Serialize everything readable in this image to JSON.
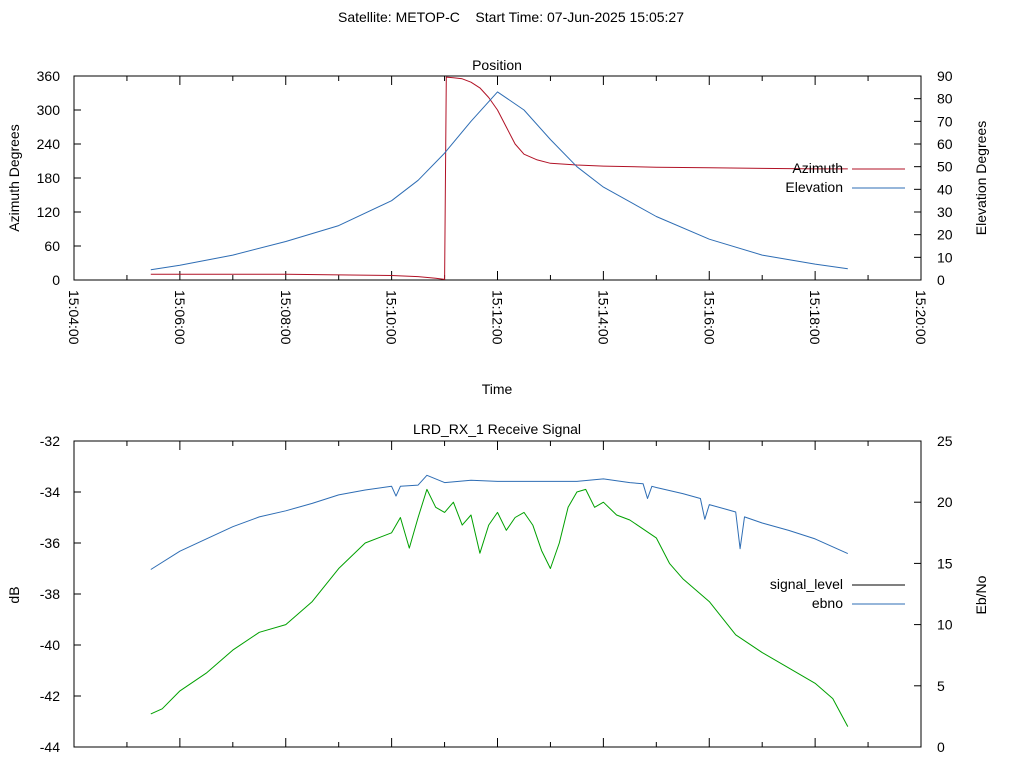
{
  "header": {
    "title": "Satellite: METOP-C    Start Time: 07-Jun-2025 15:05:27"
  },
  "colors": {
    "azimuth": "#b11226",
    "elevation": "#2e6db4",
    "signal_level": "#00a000",
    "ebno": "#2e6db4",
    "signal_level_legend": "#000000",
    "axis": "#000000"
  },
  "chart_data": [
    {
      "type": "line",
      "title": "Position",
      "xlabel": "Time",
      "ylabel": "Azimuth Degrees",
      "y2label": "Elevation Degrees",
      "xlim": [
        "15:04:00",
        "15:20:00"
      ],
      "ylim": [
        0,
        360
      ],
      "y2lim": [
        0,
        90
      ],
      "x_ticks": [
        "15:04:00",
        "15:06:00",
        "15:08:00",
        "15:10:00",
        "15:12:00",
        "15:14:00",
        "15:16:00",
        "15:18:00",
        "15:20:00"
      ],
      "y_ticks": [
        0,
        60,
        120,
        180,
        240,
        300,
        360
      ],
      "y2_ticks": [
        0,
        10,
        20,
        30,
        40,
        50,
        60,
        70,
        80,
        90
      ],
      "legend_position": "right",
      "series": [
        {
          "name": "Azimuth",
          "axis": "y",
          "x": [
            "15:05:27",
            "15:06:00",
            "15:07:00",
            "15:08:00",
            "15:09:00",
            "15:10:00",
            "15:10:30",
            "15:10:50",
            "15:11:00",
            "15:11:02",
            "15:11:10",
            "15:11:20",
            "15:11:30",
            "15:11:40",
            "15:11:50",
            "15:12:00",
            "15:12:10",
            "15:12:20",
            "15:12:30",
            "15:12:45",
            "15:13:00",
            "15:13:30",
            "15:14:00",
            "15:15:00",
            "15:16:00",
            "15:17:00",
            "15:18:00",
            "15:18:37"
          ],
          "y": [
            10,
            10,
            10,
            10,
            9,
            8,
            6,
            3,
            1,
            358,
            357,
            355,
            349,
            339,
            322,
            300,
            270,
            240,
            222,
            212,
            206,
            203,
            201,
            199,
            198,
            197,
            196,
            196
          ]
        },
        {
          "name": "Elevation",
          "axis": "y2",
          "x": [
            "15:05:27",
            "15:06:00",
            "15:07:00",
            "15:08:00",
            "15:09:00",
            "15:10:00",
            "15:10:30",
            "15:11:00",
            "15:11:30",
            "15:12:00",
            "15:12:30",
            "15:13:00",
            "15:13:30",
            "15:14:00",
            "15:15:00",
            "15:16:00",
            "15:17:00",
            "15:18:00",
            "15:18:37"
          ],
          "y": [
            4.5,
            6.5,
            11,
            17,
            24,
            35,
            44,
            56,
            70,
            83,
            75,
            62,
            50,
            41,
            28,
            18,
            11,
            7,
            5
          ]
        }
      ]
    },
    {
      "type": "line",
      "title": "LRD_RX_1 Receive Signal",
      "xlabel": "",
      "ylabel": "dB",
      "y2label": "Eb/No",
      "xlim": [
        "15:04:00",
        "15:20:00"
      ],
      "ylim": [
        -44,
        -32
      ],
      "y2lim": [
        0,
        25
      ],
      "y_ticks": [
        -44,
        -42,
        -40,
        -38,
        -36,
        -34,
        -32
      ],
      "y2_ticks": [
        0,
        5,
        10,
        15,
        20,
        25
      ],
      "legend_position": "right",
      "series": [
        {
          "name": "signal_level",
          "axis": "y",
          "x": [
            "15:05:27",
            "15:05:40",
            "15:06:00",
            "15:06:30",
            "15:07:00",
            "15:07:30",
            "15:08:00",
            "15:08:30",
            "15:09:00",
            "15:09:30",
            "15:10:00",
            "15:10:10",
            "15:10:20",
            "15:10:30",
            "15:10:40",
            "15:10:50",
            "15:11:00",
            "15:11:10",
            "15:11:20",
            "15:11:30",
            "15:11:40",
            "15:11:50",
            "15:12:00",
            "15:12:10",
            "15:12:20",
            "15:12:30",
            "15:12:40",
            "15:12:50",
            "15:13:00",
            "15:13:10",
            "15:13:20",
            "15:13:30",
            "15:13:40",
            "15:13:50",
            "15:14:00",
            "15:14:15",
            "15:14:30",
            "15:15:00",
            "15:15:15",
            "15:15:30",
            "15:16:00",
            "15:16:30",
            "15:17:00",
            "15:17:30",
            "15:18:00",
            "15:18:20",
            "15:18:37"
          ],
          "y": [
            -42.7,
            -42.5,
            -41.8,
            -41.1,
            -40.2,
            -39.5,
            -39.2,
            -38.3,
            -37.0,
            -36.0,
            -35.6,
            -35.0,
            -36.2,
            -35.0,
            -33.9,
            -34.6,
            -34.8,
            -34.4,
            -35.3,
            -34.9,
            -36.4,
            -35.3,
            -34.8,
            -35.5,
            -35.0,
            -34.8,
            -35.3,
            -36.3,
            -37.0,
            -36.0,
            -34.6,
            -34.0,
            -33.9,
            -34.6,
            -34.4,
            -34.9,
            -35.1,
            -35.8,
            -36.8,
            -37.4,
            -38.3,
            -39.6,
            -40.3,
            -40.9,
            -41.5,
            -42.1,
            -43.2
          ]
        },
        {
          "name": "ebno",
          "axis": "y2",
          "x": [
            "15:05:27",
            "15:06:00",
            "15:06:30",
            "15:07:00",
            "15:07:30",
            "15:08:00",
            "15:08:30",
            "15:09:00",
            "15:09:30",
            "15:10:00",
            "15:10:05",
            "15:10:10",
            "15:10:30",
            "15:10:40",
            "15:11:00",
            "15:11:30",
            "15:12:00",
            "15:12:30",
            "15:13:00",
            "15:13:30",
            "15:14:00",
            "15:14:30",
            "15:14:45",
            "15:14:50",
            "15:14:55",
            "15:15:00",
            "15:15:30",
            "15:15:50",
            "15:15:55",
            "15:16:00",
            "15:16:20",
            "15:16:30",
            "15:16:35",
            "15:16:40",
            "15:17:00",
            "15:17:30",
            "15:18:00",
            "15:18:37"
          ],
          "y": [
            14.5,
            16.0,
            17.0,
            18.0,
            18.8,
            19.3,
            19.9,
            20.6,
            21.0,
            21.3,
            20.5,
            21.3,
            21.4,
            22.2,
            21.6,
            21.8,
            21.7,
            21.7,
            21.7,
            21.7,
            21.9,
            21.6,
            21.5,
            20.3,
            21.3,
            21.2,
            20.7,
            20.3,
            18.6,
            19.8,
            19.4,
            19.2,
            16.2,
            18.8,
            18.3,
            17.7,
            17.0,
            15.8
          ]
        }
      ]
    }
  ]
}
